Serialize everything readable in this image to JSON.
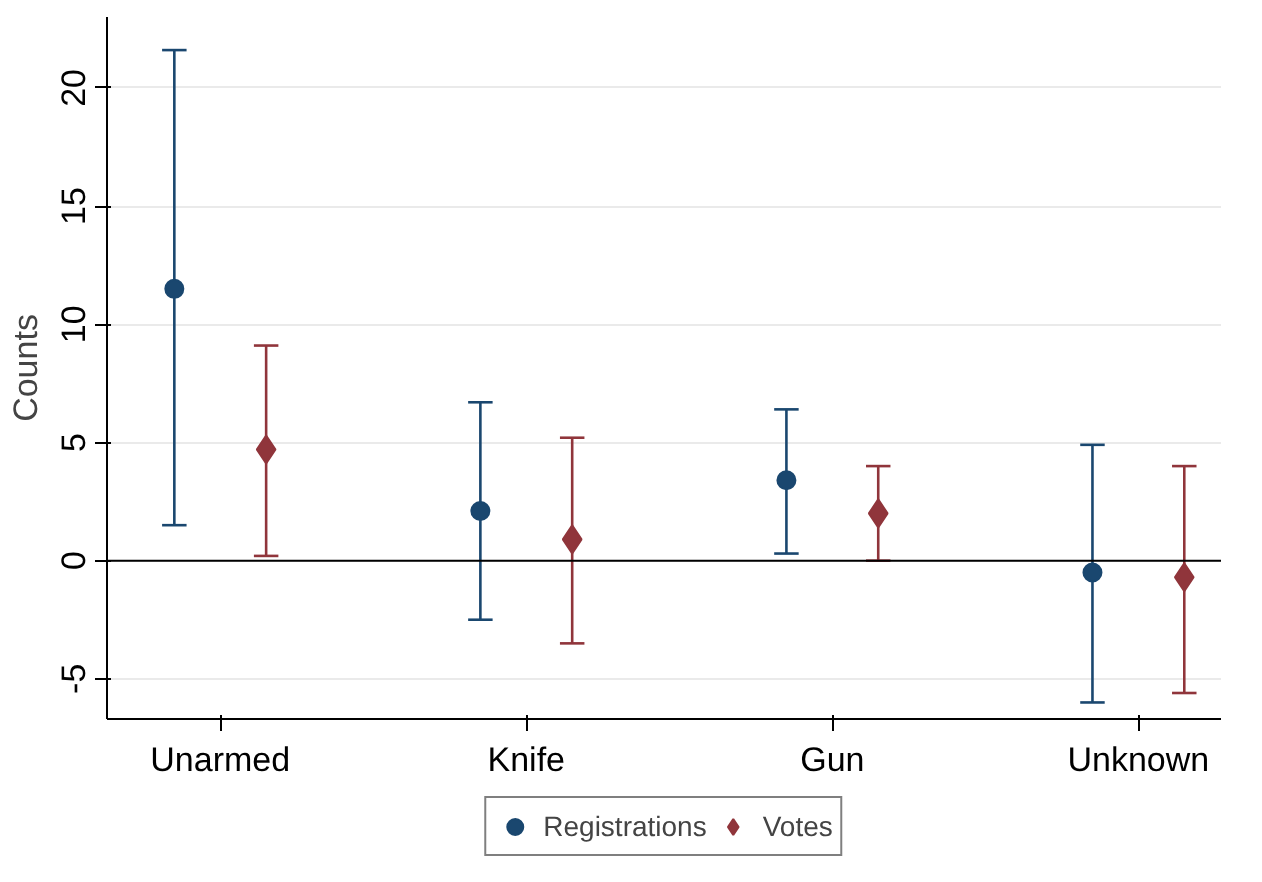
{
  "chart_data": {
    "type": "scatter",
    "ylabel": "Counts",
    "categories": [
      "Unarmed",
      "Knife",
      "Gun",
      "Unknown"
    ],
    "series": [
      {
        "name": "Registrations",
        "color": "#1a476f",
        "marker": "circle",
        "values": [
          11.5,
          2.1,
          3.4,
          -0.5
        ],
        "errors": [
          [
            1.5,
            21.6
          ],
          [
            -2.5,
            6.7
          ],
          [
            0.3,
            6.4
          ],
          [
            -6.0,
            4.9
          ]
        ]
      },
      {
        "name": "Votes",
        "color": "#90353b",
        "marker": "diamond",
        "values": [
          4.7,
          0.9,
          2.0,
          -0.7
        ],
        "errors": [
          [
            0.2,
            9.1
          ],
          [
            -3.5,
            5.2
          ],
          [
            0.0,
            4.0
          ],
          [
            -5.6,
            4.0
          ]
        ]
      }
    ],
    "ylim": [
      -6.7,
      23
    ],
    "yticks": [
      -5,
      0,
      5,
      10,
      15,
      20
    ],
    "grid": "y",
    "legend": "bottom",
    "ref_lines": [
      {
        "axis": "y",
        "value": 0,
        "color": "#000000"
      }
    ]
  }
}
